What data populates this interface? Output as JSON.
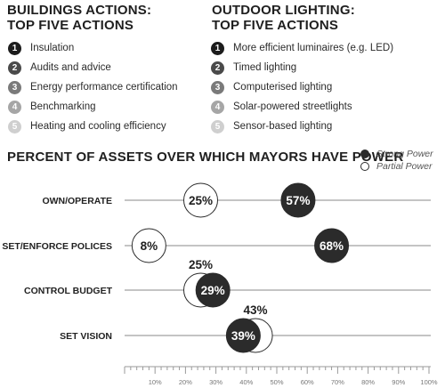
{
  "buildings": {
    "title_line1": "BUILDINGS ACTIONS:",
    "title_line2": "TOP FIVE ACTIONS",
    "items": [
      {
        "num": "1",
        "label": "Insulation",
        "color": "#1c1c1c"
      },
      {
        "num": "2",
        "label": "Audits and advice",
        "color": "#4a4a4a"
      },
      {
        "num": "3",
        "label": "Energy performance certification",
        "color": "#7a7a7a"
      },
      {
        "num": "4",
        "label": "Benchmarking",
        "color": "#a6a6a6"
      },
      {
        "num": "5",
        "label": "Heating and cooling efficiency",
        "color": "#cfcfcf"
      }
    ]
  },
  "lighting": {
    "title_line1": "OUTDOOR LIGHTING:",
    "title_line2": "TOP FIVE ACTIONS",
    "items": [
      {
        "num": "1",
        "label": "More efficient luminaires (e.g. LED)",
        "color": "#1c1c1c"
      },
      {
        "num": "2",
        "label": "Timed lighting",
        "color": "#4a4a4a"
      },
      {
        "num": "3",
        "label": "Computerised lighting",
        "color": "#7a7a7a"
      },
      {
        "num": "4",
        "label": "Solar-powered streetlights",
        "color": "#a6a6a6"
      },
      {
        "num": "5",
        "label": "Sensor-based lighting",
        "color": "#cfcfcf"
      }
    ]
  },
  "legend": {
    "strong": "Strong Power",
    "partial": "Partial Power"
  },
  "chart_data": {
    "type": "scatter",
    "title": "PERCENT OF ASSETS OVER WHICH MAYORS HAVE POWER",
    "categories": [
      "OWN/OPERATE",
      "SET/ENFORCE POLICES",
      "CONTROL BUDGET",
      "SET VISION"
    ],
    "series": [
      {
        "name": "Strong Power",
        "values": [
          57,
          68,
          29,
          39
        ],
        "color": "#2b2b2b"
      },
      {
        "name": "Partial Power",
        "values": [
          25,
          8,
          25,
          43
        ],
        "color": "#ffffff"
      }
    ],
    "x_ticks": [
      "10%",
      "20%",
      "30%",
      "40%",
      "50%",
      "60%",
      "70%",
      "80%",
      "90%",
      "100%"
    ],
    "xlim": [
      0,
      100
    ],
    "grid": false,
    "legend_position": "top-right"
  }
}
